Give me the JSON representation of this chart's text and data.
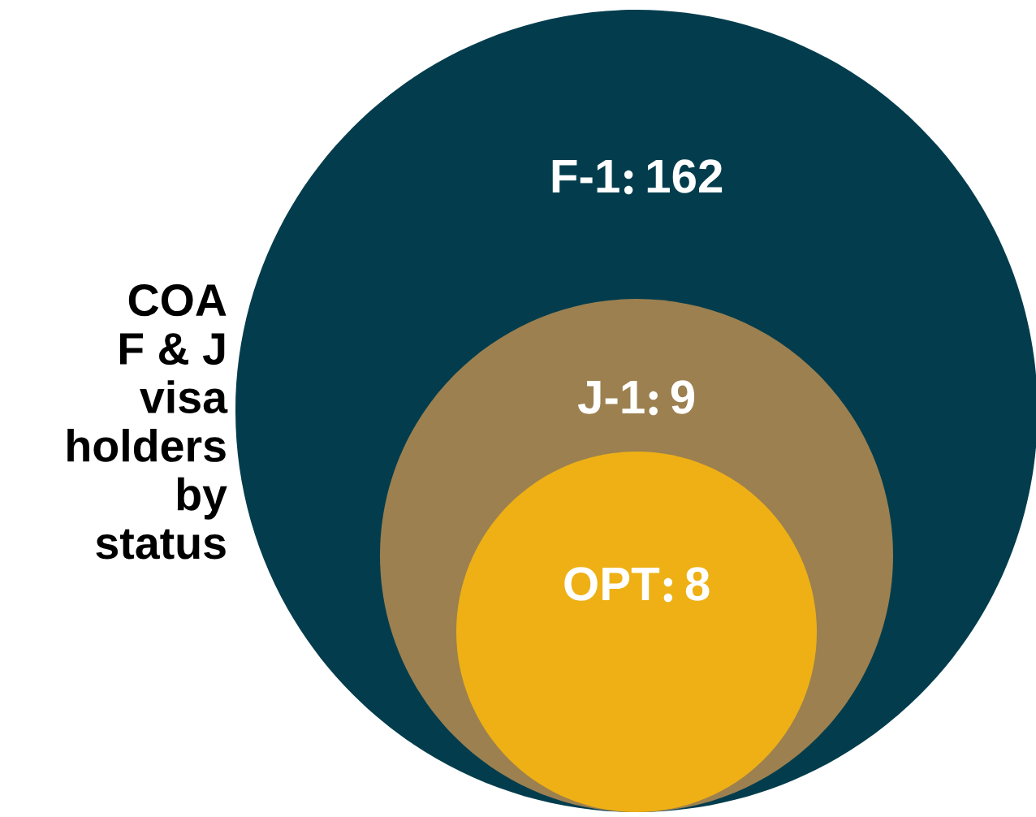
{
  "chart_data": {
    "type": "other",
    "title": "COA\nF & J\nvisa\nholders\nby\nstatus",
    "categories": [
      "F-1",
      "J-1",
      "OPT"
    ],
    "values": [
      162,
      9,
      8
    ],
    "colors": [
      "#033d4d",
      "#9c8050",
      "#eeb014"
    ],
    "data_labels": true
  }
}
